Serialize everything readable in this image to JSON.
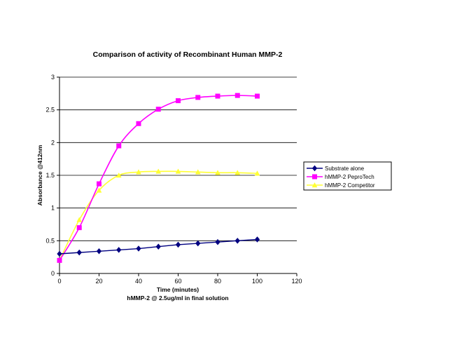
{
  "chart_data": {
    "type": "line",
    "title": "Comparison of activity of Recombinant Human MMP-2",
    "xlabel": "Time (minutes)",
    "xlabel_line2": "hMMP-2 @ 2.5ug/ml in final solution",
    "ylabel": "Absorbance @412nm",
    "xlim": [
      0,
      120
    ],
    "ylim": [
      0,
      3
    ],
    "xticks": [
      0,
      20,
      40,
      60,
      80,
      100,
      120
    ],
    "yticks": [
      0,
      0.5,
      1,
      1.5,
      2,
      2.5,
      3
    ],
    "ytick_labels": [
      "0",
      "0.5",
      "1",
      "1.5",
      "2",
      "2.5",
      "3"
    ],
    "grid": "horizontal major gridlines",
    "legend_position": "right",
    "x": [
      0,
      10,
      20,
      30,
      40,
      50,
      60,
      70,
      80,
      90,
      100
    ],
    "series": [
      {
        "name": "Substrate alone",
        "color": "#000080",
        "marker": "diamond",
        "values": [
          0.3,
          0.32,
          0.34,
          0.36,
          0.38,
          0.41,
          0.44,
          0.46,
          0.48,
          0.5,
          0.52
        ]
      },
      {
        "name": "hMMP-2 PeproTech",
        "color": "#ff00ff",
        "marker": "square",
        "values": [
          0.2,
          0.7,
          1.37,
          1.95,
          2.29,
          2.51,
          2.64,
          2.69,
          2.71,
          2.72,
          2.71
        ]
      },
      {
        "name": "hMMP-2 Competitor",
        "color": "#ffff33",
        "marker": "triangle",
        "values": [
          0.2,
          0.82,
          1.27,
          1.5,
          1.55,
          1.56,
          1.56,
          1.55,
          1.54,
          1.54,
          1.53
        ]
      }
    ]
  }
}
